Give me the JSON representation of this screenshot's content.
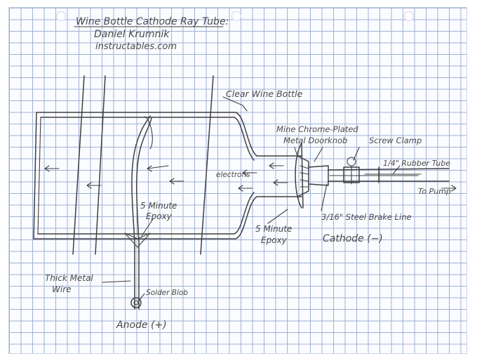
{
  "title": {
    "line1": "Wine Bottle Cathode Ray Tube:",
    "line2": "Daniel Krumnik",
    "line3": "instructables.com"
  },
  "labels": {
    "clear_wine_bottle": "Clear Wine Bottle",
    "doorknob_line1": "Mine Chrome-Plated",
    "doorknob_line2": "Metal Doorknob",
    "screw_clamp": "Screw Clamp",
    "rubber_tube": "1/4\" Rubber Tube",
    "to_pump": "To Pump",
    "brake_line": "3/16\" Steel Brake Line",
    "cathode": "Cathode (−)",
    "epoxy_left_line1": "5 Minute",
    "epoxy_left_line2": "Epoxy",
    "epoxy_right_line1": "5 Minute",
    "epoxy_right_line2": "Epoxy",
    "electrons": "electrons",
    "thick_wire_line1": "Thick Metal",
    "thick_wire_line2": "Wire",
    "solder_blob": "Solder Blob",
    "anode": "Anode (+)"
  },
  "colors": {
    "ink": "#3f3f3f",
    "grid": "#9fb1d6",
    "paper": "#fbfcff"
  }
}
